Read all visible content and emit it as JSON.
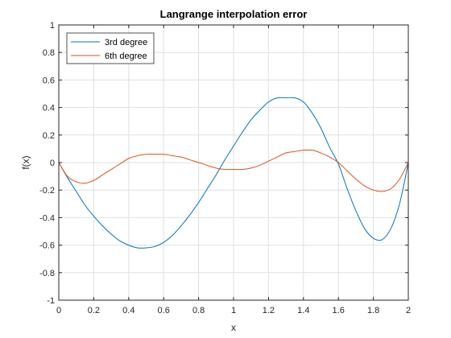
{
  "chart_data": {
    "type": "line",
    "title": "Langrange interpolation error",
    "xlabel": "x",
    "ylabel": "f(x)",
    "xlim": [
      0,
      2
    ],
    "ylim": [
      -1,
      1
    ],
    "xticks": [
      0,
      0.2,
      0.4,
      0.6,
      0.8,
      1,
      1.2,
      1.4,
      1.6,
      1.8,
      2
    ],
    "xtick_labels": [
      "0",
      "0.2",
      "0.4",
      "0.6",
      "0.8",
      "1",
      "1.2",
      "1.4",
      "1.6",
      "1.8",
      "2"
    ],
    "yticks": [
      -1,
      -0.8,
      -0.6,
      -0.4,
      -0.2,
      0,
      0.2,
      0.4,
      0.6,
      0.8,
      1
    ],
    "ytick_labels": [
      "-1",
      "-0.8",
      "-0.6",
      "-0.4",
      "-0.2",
      "0",
      "0.2",
      "0.4",
      "0.6",
      "0.8",
      "1"
    ],
    "grid": true,
    "legend_position": "top-left",
    "series": [
      {
        "name": "3rd degree",
        "color": "#0072BD",
        "x": [
          0,
          0.05,
          0.1,
          0.15,
          0.2,
          0.25,
          0.3,
          0.35,
          0.4,
          0.45,
          0.5,
          0.55,
          0.6,
          0.65,
          0.7,
          0.75,
          0.8,
          0.85,
          0.9,
          0.95,
          1.0,
          1.05,
          1.1,
          1.15,
          1.2,
          1.25,
          1.3,
          1.35,
          1.4,
          1.45,
          1.5,
          1.55,
          1.6,
          1.65,
          1.7,
          1.75,
          1.8,
          1.85,
          1.9,
          1.95,
          2.0
        ],
        "y": [
          0,
          -0.11,
          -0.21,
          -0.31,
          -0.39,
          -0.46,
          -0.52,
          -0.57,
          -0.6,
          -0.62,
          -0.62,
          -0.61,
          -0.58,
          -0.53,
          -0.46,
          -0.38,
          -0.29,
          -0.19,
          -0.09,
          0.02,
          0.12,
          0.22,
          0.31,
          0.38,
          0.44,
          0.47,
          0.47,
          0.47,
          0.44,
          0.36,
          0.25,
          0.11,
          -0.01,
          -0.19,
          -0.35,
          -0.48,
          -0.55,
          -0.56,
          -0.48,
          -0.3,
          0
        ]
      },
      {
        "name": "6th degree",
        "color": "#D95319",
        "x": [
          0,
          0.05,
          0.1,
          0.15,
          0.2,
          0.25,
          0.3,
          0.35,
          0.4,
          0.45,
          0.5,
          0.55,
          0.6,
          0.65,
          0.7,
          0.75,
          0.8,
          0.85,
          0.9,
          0.95,
          1.0,
          1.05,
          1.1,
          1.15,
          1.2,
          1.25,
          1.3,
          1.35,
          1.4,
          1.45,
          1.5,
          1.55,
          1.6,
          1.65,
          1.7,
          1.75,
          1.8,
          1.85,
          1.9,
          1.95,
          2.0
        ],
        "y": [
          0,
          -0.1,
          -0.14,
          -0.15,
          -0.13,
          -0.09,
          -0.05,
          -0.01,
          0.03,
          0.05,
          0.06,
          0.06,
          0.06,
          0.05,
          0.04,
          0.02,
          0.0,
          -0.02,
          -0.04,
          -0.05,
          -0.05,
          -0.05,
          -0.04,
          -0.02,
          0.01,
          0.04,
          0.07,
          0.08,
          0.09,
          0.09,
          0.07,
          0.04,
          0.0,
          -0.06,
          -0.12,
          -0.17,
          -0.2,
          -0.21,
          -0.19,
          -0.12,
          0
        ]
      }
    ]
  },
  "colors": {
    "axis": "#262626",
    "grid": "#DFDFDF",
    "background": "#FFFFFF"
  }
}
